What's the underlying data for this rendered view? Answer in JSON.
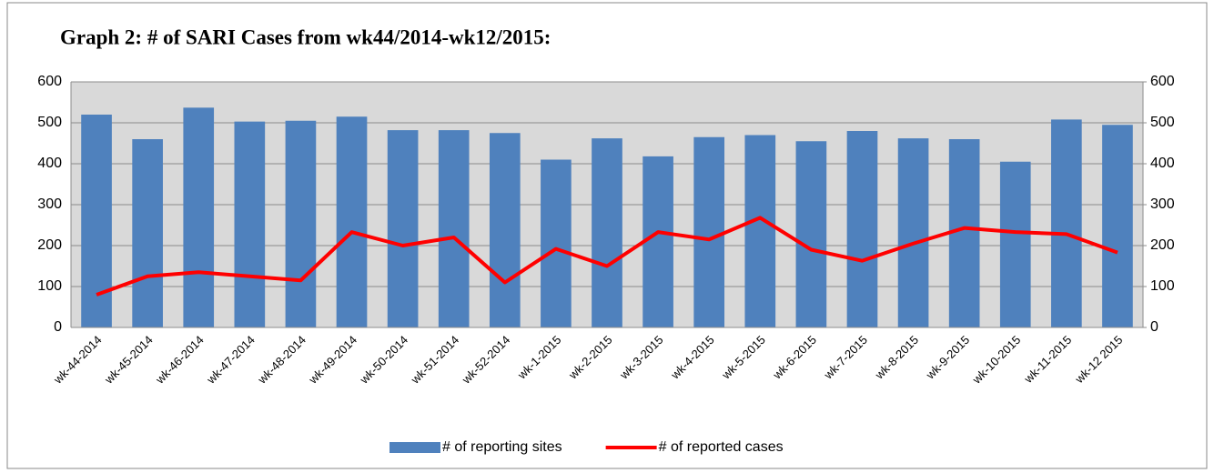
{
  "chart_data": {
    "type": "combo",
    "title": "Graph 2: # of SARI Cases from wk44/2014-wk12/2015:",
    "categories": [
      "wk-44-2014",
      "wk-45-2014",
      "wk-46-2014",
      "wk-47-2014",
      "wk-48-2014",
      "wk-49-2014",
      "wk-50-2014",
      "wk-51-2014",
      "wk-52-2014",
      "wk-1-2015",
      "wk-2-2015",
      "wk-3-2015",
      "wk-4-2015",
      "wk-5-2015",
      "wk-6-2015",
      "wk-7-2015",
      "wk-8-2015",
      "wk-9-2015",
      "wk-10-2015",
      "wk-11-2015",
      "wk-12 2015"
    ],
    "series": [
      {
        "name": "# of reporting sites",
        "type": "bar",
        "color": "#4f81bd",
        "values": [
          520,
          460,
          537,
          503,
          505,
          515,
          482,
          482,
          475,
          410,
          462,
          418,
          465,
          470,
          455,
          480,
          462,
          460,
          405,
          508,
          495
        ]
      },
      {
        "name": "# of reported cases",
        "type": "line",
        "color": "#ff0000",
        "axis": "y2",
        "values": [
          80,
          125,
          135,
          125,
          115,
          233,
          200,
          220,
          110,
          192,
          150,
          233,
          215,
          268,
          190,
          163,
          205,
          243,
          233,
          228,
          183
        ]
      }
    ],
    "ylim": [
      0,
      600
    ],
    "yticks": [
      0,
      100,
      200,
      300,
      400,
      500,
      600
    ],
    "y2lim": [
      0,
      600
    ],
    "y2ticks": [
      0,
      100,
      200,
      300,
      400,
      500,
      600
    ],
    "grid": true,
    "legend": "bottom"
  }
}
